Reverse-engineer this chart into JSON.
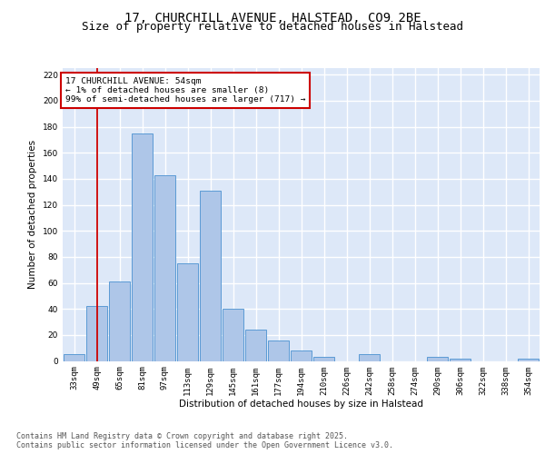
{
  "title": "17, CHURCHILL AVENUE, HALSTEAD, CO9 2BE",
  "subtitle": "Size of property relative to detached houses in Halstead",
  "xlabel": "Distribution of detached houses by size in Halstead",
  "ylabel": "Number of detached properties",
  "bar_labels": [
    "33sqm",
    "49sqm",
    "65sqm",
    "81sqm",
    "97sqm",
    "113sqm",
    "129sqm",
    "145sqm",
    "161sqm",
    "177sqm",
    "194sqm",
    "210sqm",
    "226sqm",
    "242sqm",
    "258sqm",
    "274sqm",
    "290sqm",
    "306sqm",
    "322sqm",
    "338sqm",
    "354sqm"
  ],
  "bar_values": [
    5,
    42,
    61,
    175,
    143,
    75,
    131,
    40,
    24,
    16,
    8,
    3,
    0,
    5,
    0,
    0,
    3,
    2,
    0,
    0,
    2
  ],
  "bar_color": "#aec6e8",
  "bar_edge_color": "#5b9bd5",
  "red_line_x": 1,
  "annotation_text": "17 CHURCHILL AVENUE: 54sqm\n← 1% of detached houses are smaller (8)\n99% of semi-detached houses are larger (717) →",
  "annotation_box_color": "#ffffff",
  "annotation_box_edge": "#cc0000",
  "red_line_color": "#cc0000",
  "background_color": "#dde8f8",
  "fig_background": "#ffffff",
  "grid_color": "#ffffff",
  "ylim": [
    0,
    225
  ],
  "yticks": [
    0,
    20,
    40,
    60,
    80,
    100,
    120,
    140,
    160,
    180,
    200,
    220
  ],
  "footer_text": "Contains HM Land Registry data © Crown copyright and database right 2025.\nContains public sector information licensed under the Open Government Licence v3.0.",
  "title_fontsize": 10,
  "subtitle_fontsize": 9,
  "axis_label_fontsize": 7.5,
  "tick_fontsize": 6.5,
  "annotation_fontsize": 6.8,
  "footer_fontsize": 6.0
}
